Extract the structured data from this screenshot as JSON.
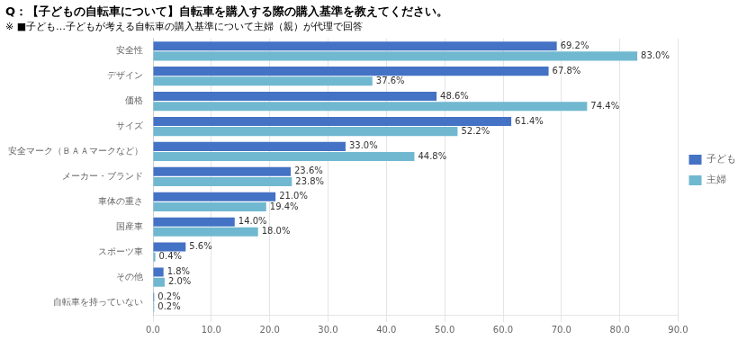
{
  "chart_data": {
    "type": "bar",
    "orientation": "horizontal",
    "title": "Q：【子どもの自転車について】自転車を購入する際の購入基準を教えてください。",
    "subtitle": "※ ■子ども…子どもが考える自転車の購入基準について主婦（親）が代理で回答",
    "categories": [
      "安全性",
      "デザイン",
      "価格",
      "サイズ",
      "安全マーク（ＢＡＡマークなど）",
      "メーカー・ブランド",
      "車体の重さ",
      "国産車",
      "スポーツ車",
      "その他",
      "自転車を持っていない"
    ],
    "series": [
      {
        "name": "子ども",
        "color": "#4472C4",
        "values": [
          69.2,
          67.8,
          48.6,
          61.4,
          33.0,
          23.6,
          21.0,
          14.0,
          5.6,
          1.8,
          0.2
        ],
        "value_labels": [
          "69.2%",
          "67.8%",
          "48.6%",
          "61.4%",
          "33.0%",
          "23.6%",
          "21.0%",
          "14.0%",
          "5.6%",
          "1.8%",
          "0.2%"
        ]
      },
      {
        "name": "主婦",
        "color": "#70B8D0",
        "values": [
          83.0,
          37.6,
          74.4,
          52.2,
          44.8,
          23.8,
          19.4,
          18.0,
          0.4,
          2.0,
          0.2
        ],
        "value_labels": [
          "83.0%",
          "37.6%",
          "74.4%",
          "52.2%",
          "44.8%",
          "23.8%",
          "19.4%",
          "18.0%",
          "0.4%",
          "2.0%",
          "0.2%"
        ]
      }
    ],
    "xlim": [
      0,
      90
    ],
    "xticks": [
      {
        "value": 0,
        "label": "0.0"
      },
      {
        "value": 10,
        "label": "10.0"
      },
      {
        "value": 20,
        "label": "20.0"
      },
      {
        "value": 30,
        "label": "30.0"
      },
      {
        "value": 40,
        "label": "40.0"
      },
      {
        "value": 50,
        "label": "50.0"
      },
      {
        "value": 60,
        "label": "60.0"
      },
      {
        "value": 70,
        "label": "70.0"
      },
      {
        "value": 80,
        "label": "80.0"
      },
      {
        "value": 90,
        "label": "90.0"
      }
    ],
    "grid": true,
    "legend": "right",
    "data_labels": true
  }
}
